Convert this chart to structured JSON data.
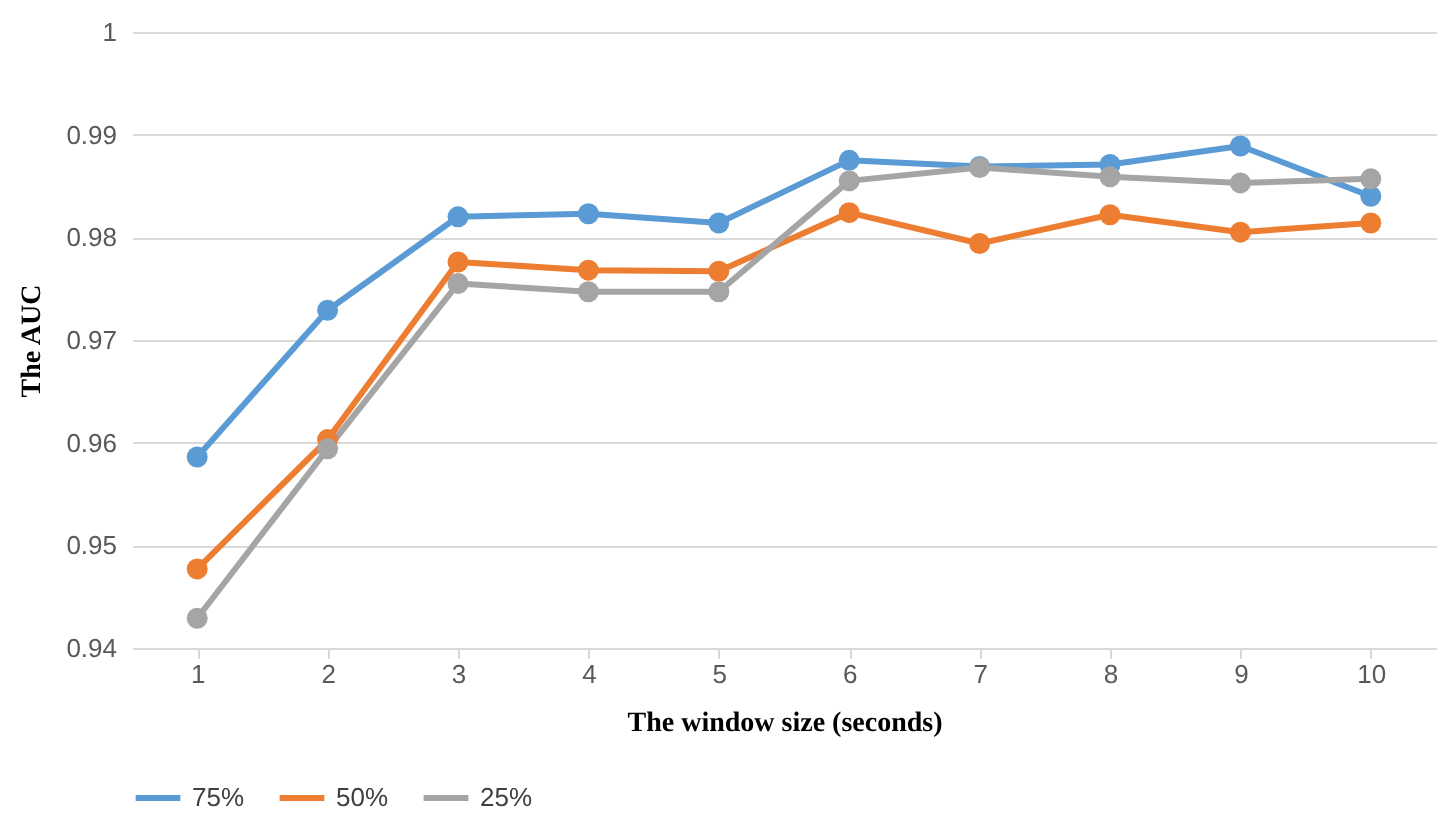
{
  "chart_data": {
    "type": "line",
    "xlabel": "The window size (seconds)",
    "ylabel": "The AUC",
    "categories": [
      "1",
      "2",
      "3",
      "4",
      "5",
      "6",
      "7",
      "8",
      "9",
      "10"
    ],
    "series": [
      {
        "name": "75%",
        "color": "#5b9bd5",
        "values": [
          0.9586,
          0.9729,
          0.982,
          0.9823,
          0.9814,
          0.9875,
          0.9869,
          0.9871,
          0.9889,
          0.984
        ]
      },
      {
        "name": "50%",
        "color": "#ed7d31",
        "values": [
          0.9477,
          0.9603,
          0.9776,
          0.9768,
          0.9767,
          0.9824,
          0.9794,
          0.9822,
          0.9805,
          0.9814
        ]
      },
      {
        "name": "25%",
        "color": "#a5a5a5",
        "values": [
          0.9429,
          0.9594,
          0.9755,
          0.9747,
          0.9747,
          0.9855,
          0.9868,
          0.9859,
          0.9853,
          0.9857
        ]
      }
    ],
    "ylim": [
      0.94,
      1
    ],
    "yticks": [
      0.94,
      0.95,
      0.96,
      0.97,
      0.98,
      0.99,
      1
    ],
    "grid": "y",
    "legend": "bottom",
    "marker": "circle",
    "line_style": "solid"
  }
}
